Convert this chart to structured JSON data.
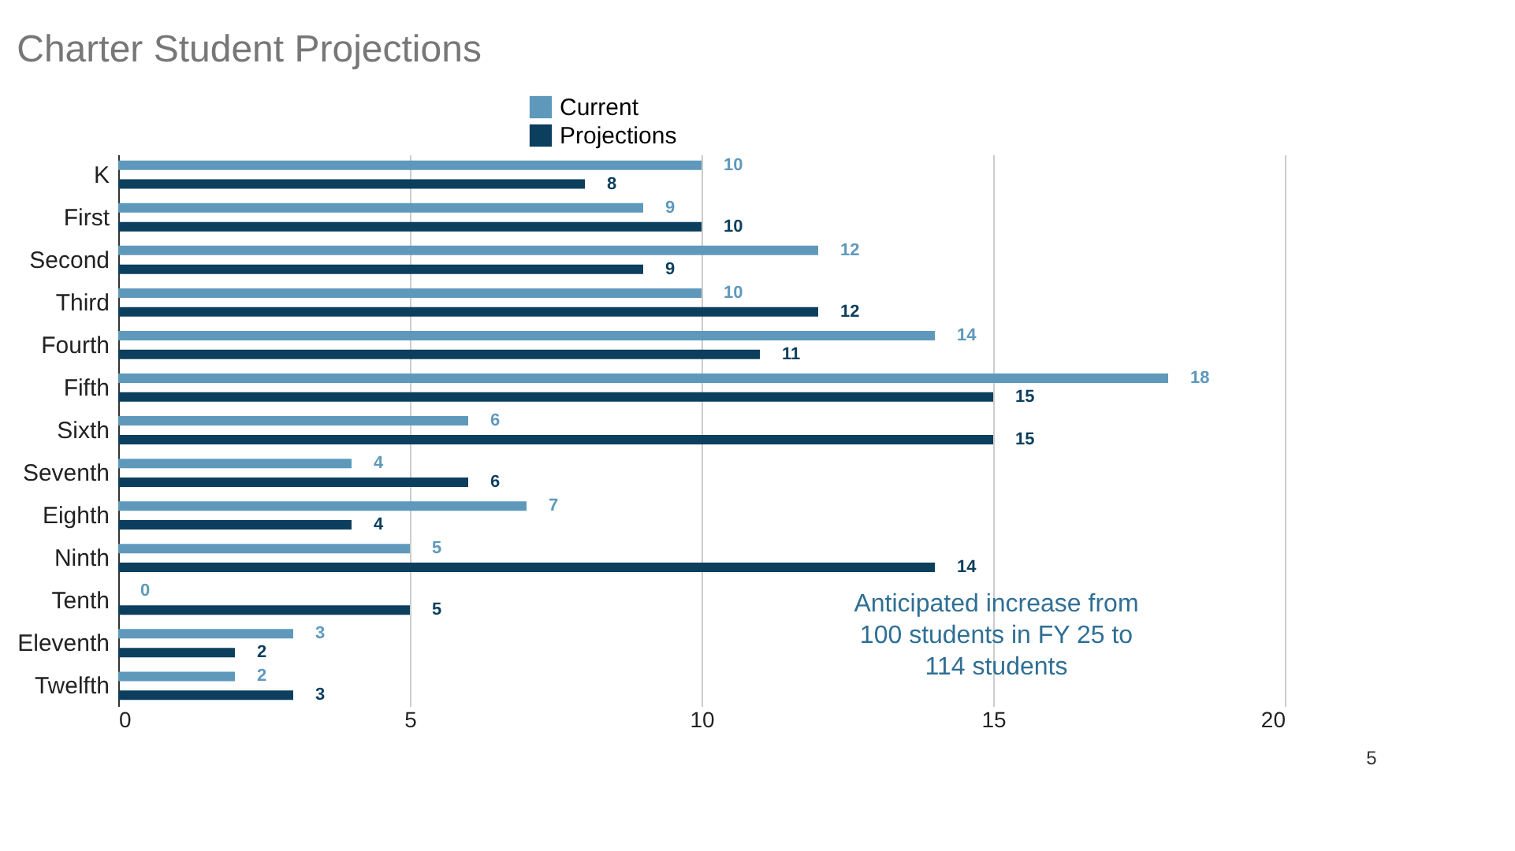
{
  "chart_data": {
    "type": "bar",
    "orientation": "horizontal",
    "title": "Charter Student Projections",
    "categories": [
      "K",
      "First",
      "Second",
      "Third",
      "Fourth",
      "Fifth",
      "Sixth",
      "Seventh",
      "Eighth",
      "Ninth",
      "Tenth",
      "Eleventh",
      "Twelfth"
    ],
    "series": [
      {
        "name": "Current",
        "color": "#5e99bb",
        "values": [
          10,
          9,
          12,
          10,
          14,
          18,
          6,
          4,
          7,
          5,
          0,
          3,
          2
        ]
      },
      {
        "name": "Projections",
        "color": "#0c3e5e",
        "values": [
          8,
          10,
          9,
          12,
          11,
          15,
          15,
          6,
          4,
          14,
          5,
          2,
          3
        ]
      }
    ],
    "xlim": [
      0,
      20
    ],
    "xticks": [
      0,
      5,
      10,
      15,
      20
    ],
    "grid": "x",
    "legend": "top",
    "data_labels": true,
    "annotations": [
      "Anticipated increase from 100 students in FY 25 to 114 students",
      "5"
    ]
  }
}
